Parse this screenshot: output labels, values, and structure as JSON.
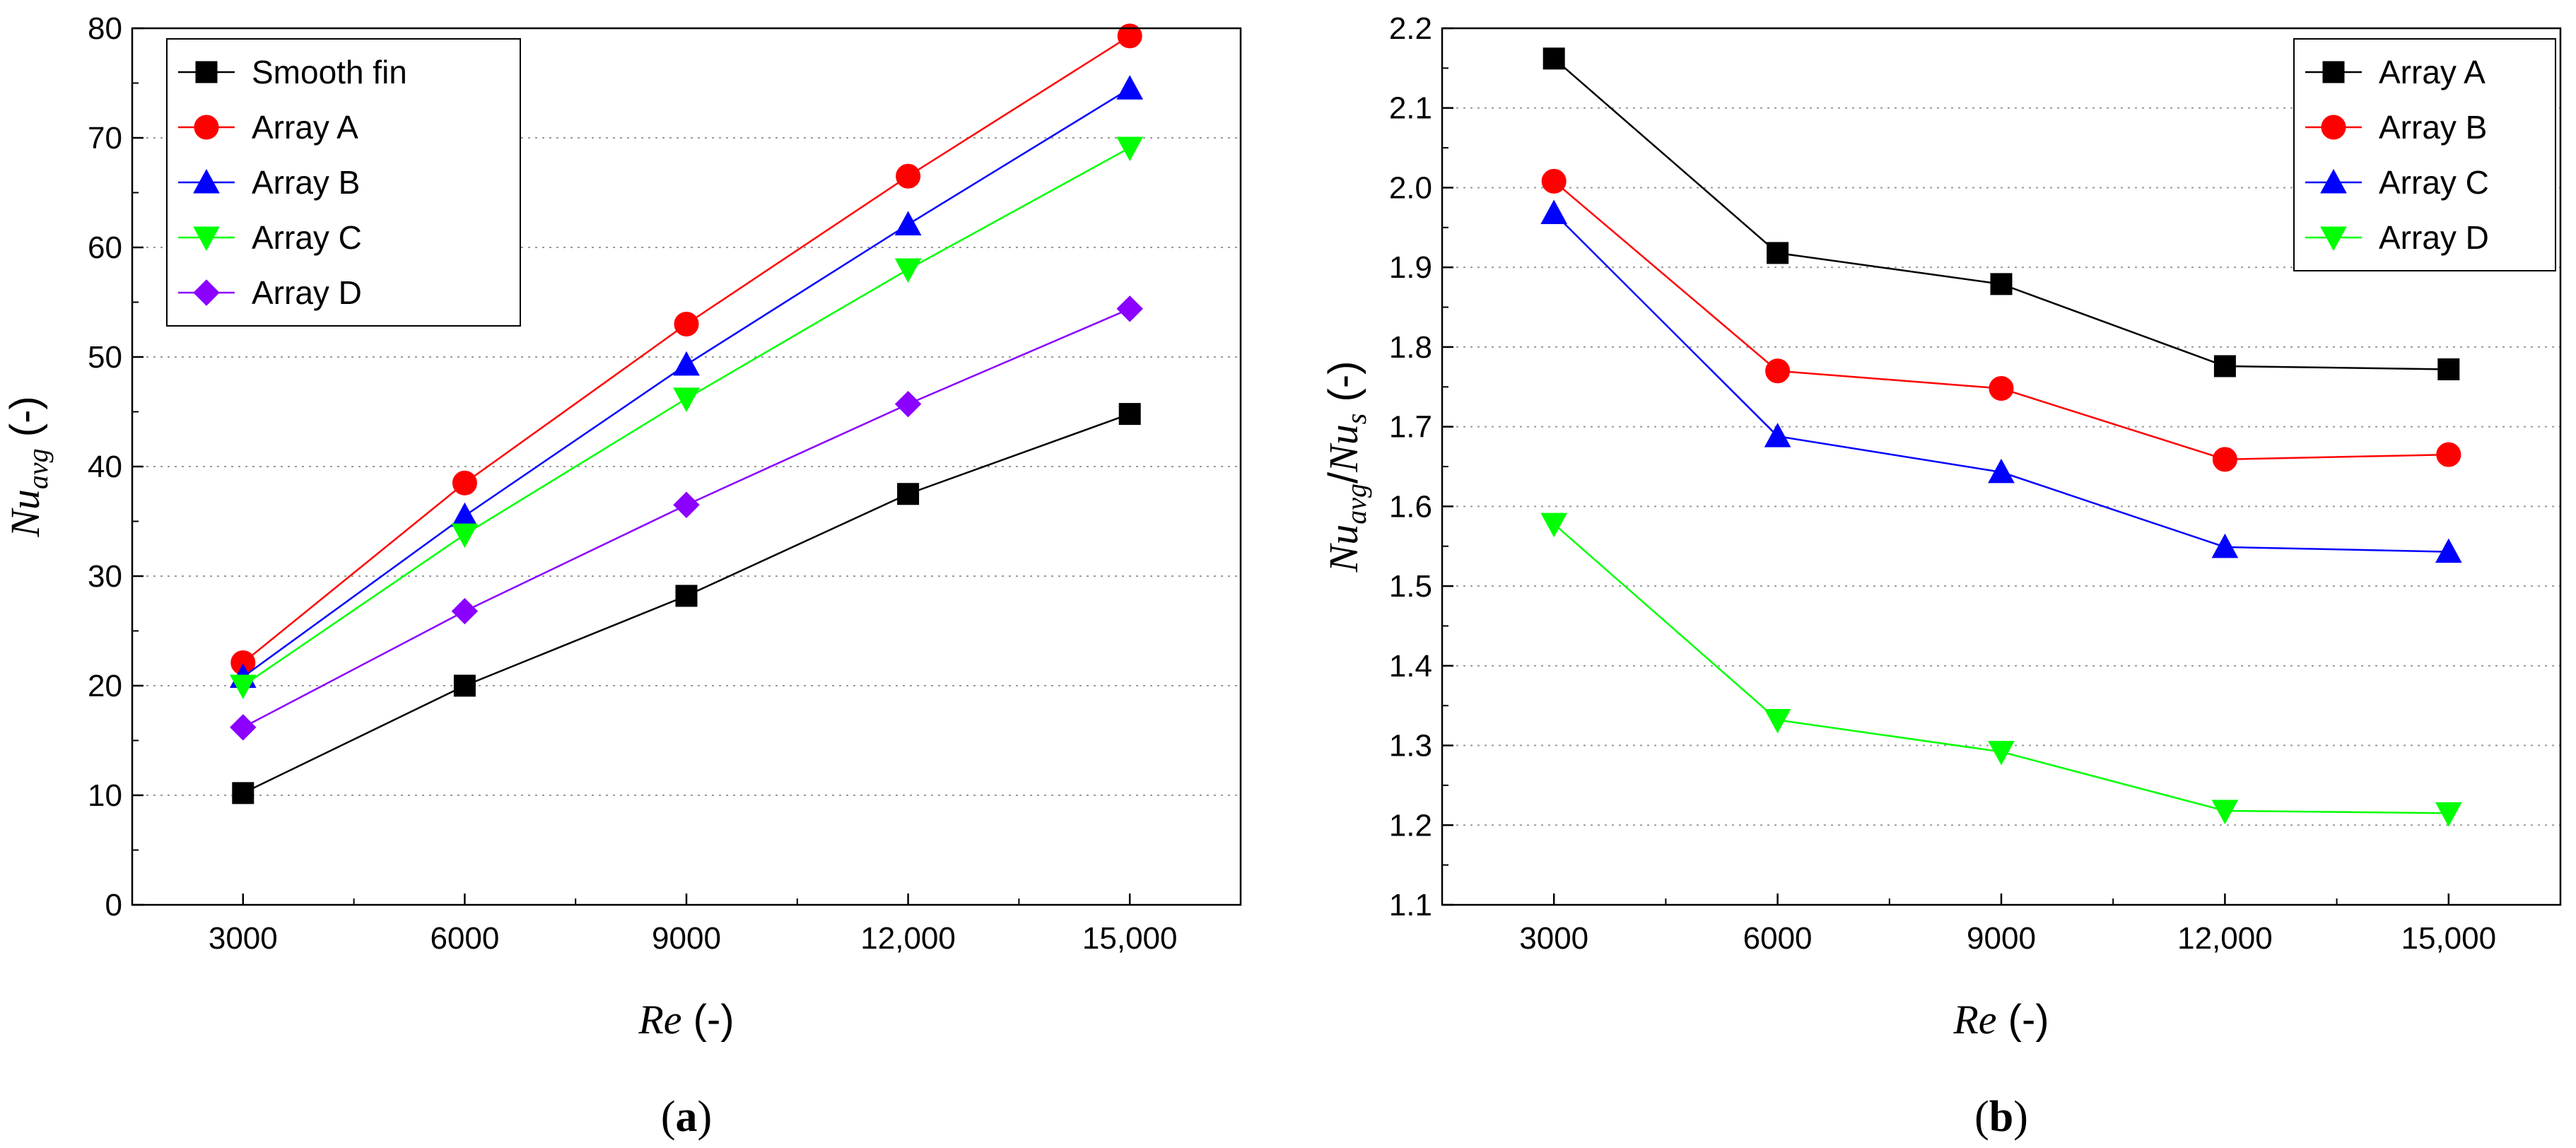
{
  "chart_data": [
    {
      "id": "a",
      "type": "line",
      "panel_label": {
        "open": "(",
        "letter": "a",
        "close": ")"
      },
      "xlabel": {
        "main": "Re",
        "unit": " (-)"
      },
      "ylabel": {
        "main": "Nu",
        "sub": "avg",
        "unit": " (-)"
      },
      "x": [
        3000,
        6000,
        9000,
        12000,
        15000
      ],
      "xtick_labels": [
        "3000",
        "6000",
        "9000",
        "12,000",
        "15,000"
      ],
      "xlim": [
        1500,
        16500
      ],
      "ylim": [
        0,
        80
      ],
      "yticks": [
        0,
        10,
        20,
        30,
        40,
        50,
        60,
        70,
        80
      ],
      "ytick_labels": [
        "0",
        "10",
        "20",
        "30",
        "40",
        "50",
        "60",
        "70",
        "80"
      ],
      "grid": "horizontal-dotted",
      "legend_position": "top-left",
      "series": [
        {
          "name": "Smooth fin",
          "color": "#000000",
          "marker": "square",
          "values": [
            10.2,
            20.0,
            28.2,
            37.5,
            44.8
          ]
        },
        {
          "name": "Array A",
          "color": "#ff0000",
          "marker": "circle",
          "values": [
            22.1,
            38.5,
            53.0,
            66.5,
            79.3
          ]
        },
        {
          "name": "Array B",
          "color": "#0000ff",
          "marker": "triangle-up",
          "values": [
            20.8,
            35.5,
            49.3,
            62.1,
            74.5
          ]
        },
        {
          "name": "Array C",
          "color": "#00ff00",
          "marker": "triangle-down",
          "values": [
            20.0,
            33.8,
            46.2,
            58.0,
            69.1
          ]
        },
        {
          "name": "Array D",
          "color": "#8b00ff",
          "marker": "diamond",
          "values": [
            16.2,
            26.8,
            36.5,
            45.7,
            54.4
          ]
        }
      ]
    },
    {
      "id": "b",
      "type": "line",
      "panel_label": {
        "open": "(",
        "letter": "b",
        "close": ")"
      },
      "xlabel": {
        "main": "Re",
        "unit": " (-)"
      },
      "ylabel": {
        "main": "Nu",
        "sub": "avg",
        "sep": "/",
        "main2": "Nu",
        "sub2": "s",
        "unit": " (-)"
      },
      "x": [
        3000,
        6000,
        9000,
        12000,
        15000
      ],
      "xtick_labels": [
        "3000",
        "6000",
        "9000",
        "12,000",
        "15,000"
      ],
      "xlim": [
        1500,
        16500
      ],
      "ylim": [
        1.1,
        2.2
      ],
      "yticks": [
        1.1,
        1.2,
        1.3,
        1.4,
        1.5,
        1.6,
        1.7,
        1.8,
        1.9,
        2.0,
        2.1,
        2.2
      ],
      "ytick_labels": [
        "1.1",
        "1.2",
        "1.3",
        "1.4",
        "1.5",
        "1.6",
        "1.7",
        "1.8",
        "1.9",
        "2.0",
        "2.1",
        "2.2"
      ],
      "grid": "horizontal-dotted",
      "legend_position": "top-right",
      "series": [
        {
          "name": "Array A",
          "color": "#000000",
          "marker": "square",
          "values": [
            2.162,
            1.918,
            1.879,
            1.776,
            1.772
          ]
        },
        {
          "name": "Array B",
          "color": "#ff0000",
          "marker": "circle",
          "values": [
            2.008,
            1.77,
            1.748,
            1.659,
            1.665
          ]
        },
        {
          "name": "Array C",
          "color": "#0000ff",
          "marker": "triangle-up",
          "values": [
            1.968,
            1.688,
            1.643,
            1.549,
            1.543
          ]
        },
        {
          "name": "Array D",
          "color": "#00ff00",
          "marker": "triangle-down",
          "values": [
            1.578,
            1.332,
            1.292,
            1.218,
            1.215
          ]
        }
      ]
    }
  ]
}
